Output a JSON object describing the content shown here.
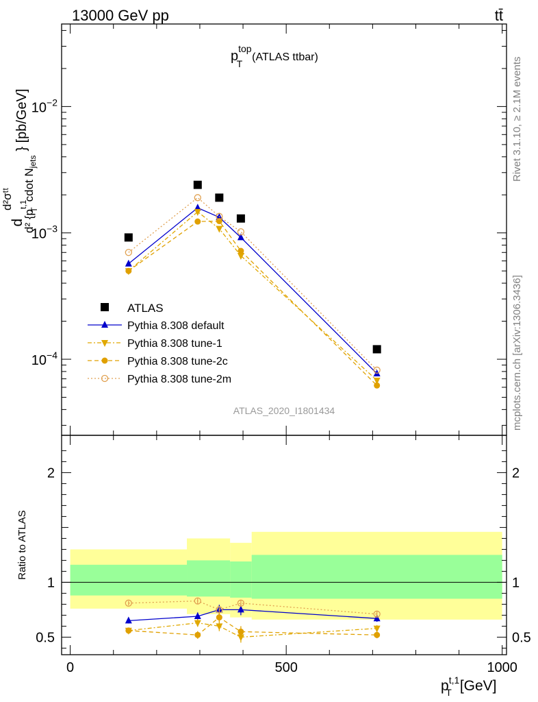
{
  "header": {
    "left": "13000 GeV pp",
    "right": "tt̄"
  },
  "side_labels": {
    "rivet": "Rivet 3.1.10, ≥ 2.1M events",
    "mcplots": "mcplots.cern.ch [arXiv:1306.3436]"
  },
  "chart_data": {
    "type": "line",
    "title_main": "p",
    "title_sup": "top",
    "title_sub": "T",
    "title_rest": "(ATLAS ttbar)",
    "analysis_id": "ATLAS_2020_I1801434",
    "xlabel": "p",
    "xlabel_sup": "t,1",
    "xlabel_sub": "T",
    "xlabel_unit": "[GeV]",
    "ylabel_main_parts": [
      "d",
      "d²σᵗᵗ",
      "d² {p",
      "t,1",
      "T",
      "cdot N",
      "jets",
      "} [pb/GeV]"
    ],
    "ylabel_ratio": "Ratio to ATLAS",
    "xlim": [
      -20,
      1010
    ],
    "ylim_main": [
      2.5e-05,
      0.045
    ],
    "ylim_ratio": [
      0.34,
      2.34
    ],
    "yscale_main": "log",
    "x_ticks": [
      "0",
      "500",
      "1000"
    ],
    "y_ticks_main": [
      {
        "value": 0.0001,
        "base": "10",
        "exp": "−4"
      },
      {
        "value": 0.001,
        "base": "10",
        "exp": "−3"
      },
      {
        "value": 0.01,
        "base": "10",
        "exp": "−2"
      }
    ],
    "y_ticks_ratio": [
      "0.5",
      "1",
      "2"
    ],
    "legend_position": "lower-left",
    "data": {
      "name": "ATLAS",
      "color": "#000000",
      "x": [
        135,
        295,
        345,
        395,
        710
      ],
      "y": [
        0.00092,
        0.0024,
        0.0019,
        0.0013,
        0.00012
      ]
    },
    "band_bins": [
      [
        0,
        270
      ],
      [
        270,
        370
      ],
      [
        370,
        1000
      ]
    ],
    "band_bins_detail": [
      {
        "x0": 0,
        "x1": 270,
        "stat_lo": 0.88,
        "stat_hi": 1.16,
        "tot_lo": 0.76,
        "tot_hi": 1.3
      },
      {
        "x0": 270,
        "x1": 370,
        "stat_lo": 0.87,
        "stat_hi": 1.2,
        "tot_lo": 0.71,
        "tot_hi": 1.4
      },
      {
        "x0": 370,
        "x1": 420,
        "stat_lo": 0.86,
        "stat_hi": 1.19,
        "tot_lo": 0.68,
        "tot_hi": 1.36
      },
      {
        "x0": 420,
        "x1": 1000,
        "stat_lo": 0.85,
        "stat_hi": 1.25,
        "tot_lo": 0.66,
        "tot_hi": 1.46
      }
    ],
    "series": [
      {
        "name": "Pythia 8.308 default",
        "color": "#0000cc",
        "marker": "triangle-up",
        "dash": "solid",
        "y": [
          0.00057,
          0.00158,
          0.00133,
          0.00092,
          7.7e-05
        ],
        "ratio": [
          0.65,
          0.69,
          0.75,
          0.75,
          0.67
        ],
        "ratio_err": [
          0.025,
          0.035,
          0.045,
          0.05,
          0.03
        ]
      },
      {
        "name": "Pythia 8.308 tune-1",
        "color": "#e0a800",
        "marker": "triangle-down",
        "dash": "dashdot",
        "y": [
          0.0005,
          0.00147,
          0.00108,
          0.00066,
          6.8e-05
        ],
        "ratio": [
          0.56,
          0.63,
          0.6,
          0.5,
          0.58
        ],
        "ratio_err": [
          0.025,
          0.035,
          0.045,
          0.05,
          0.03
        ]
      },
      {
        "name": "Pythia 8.308 tune-2c",
        "color": "#e0a000",
        "marker": "circle",
        "dash": "dashed",
        "y": [
          0.0005,
          0.00123,
          0.00124,
          0.00072,
          6.2e-05
        ],
        "ratio": [
          0.56,
          0.52,
          0.68,
          0.55,
          0.52
        ],
        "ratio_err": [
          0.025,
          0.035,
          0.045,
          0.05,
          0.03
        ]
      },
      {
        "name": "Pythia 8.308 tune-2m",
        "color": "#e0a050",
        "marker": "circle-open",
        "dash": "dotted",
        "y": [
          0.0007,
          0.0019,
          0.00135,
          0.00102,
          8.2e-05
        ],
        "ratio": [
          0.81,
          0.83,
          0.75,
          0.81,
          0.71
        ],
        "ratio_err": [
          0.02,
          0.025,
          0.03,
          0.03,
          0.025
        ]
      }
    ]
  }
}
